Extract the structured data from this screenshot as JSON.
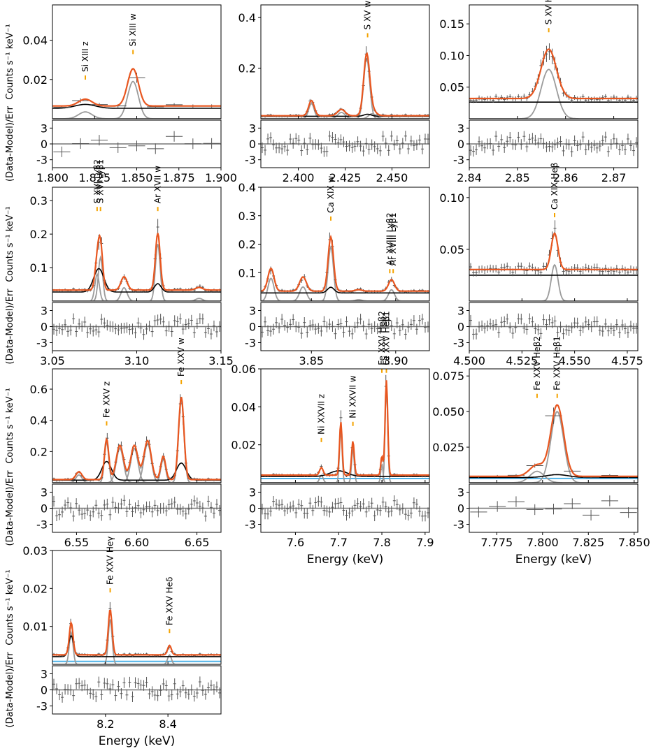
{
  "figure": {
    "ylabel_top": "Counts s⁻¹ keV⁻¹",
    "ylabel_bottom": "(Data-Model)/Err",
    "xlabel": "Energy (keV)"
  },
  "colors": {
    "model": "#e8561f",
    "data": "#555555",
    "background": "#000000",
    "line_component": "#9b9b9b",
    "nxb": "#4fb3e8",
    "line_marker": "#f4a300",
    "zero_line": "#777777"
  },
  "chart_data": [
    {
      "id": "p1",
      "type": "line",
      "xlim": [
        1.8,
        1.9
      ],
      "ylim": [
        0,
        0.058
      ],
      "xticks": [
        "1.800",
        "1.825",
        "1.850",
        "1.875",
        "1.900"
      ],
      "yticks": [
        "0.02",
        "0.04"
      ],
      "line_markers": [
        {
          "label": "Si XIII z",
          "x": 1.8195,
          "y": 0.021
        },
        {
          "label": "Si XIII w",
          "x": 1.8478,
          "y": 0.034
        }
      ],
      "lines": [
        {
          "label": "Si XIII z",
          "x": 1.8195,
          "y": 0.021
        },
        {
          "label": "Si XIII w",
          "x": 1.8478,
          "y": 0.034
        }
      ]
    },
    {
      "id": "p2",
      "type": "line",
      "xlim": [
        2.38,
        2.47
      ],
      "ylim": [
        0,
        0.45
      ],
      "xticks": [
        "2.400",
        "2.425",
        "2.450"
      ],
      "yticks": [
        "0.2",
        "0.4"
      ],
      "lines": [
        {
          "label": "S XV w",
          "x": 2.437,
          "y": 0.33
        }
      ]
    },
    {
      "id": "p3",
      "type": "line",
      "xlim": [
        2.84,
        2.875
      ],
      "ylim": [
        0,
        0.18
      ],
      "xticks": [
        "2.84",
        "2.85",
        "2.86",
        "2.87"
      ],
      "yticks": [
        "0.05",
        "0.10",
        "0.15"
      ],
      "lines": [
        {
          "label": "S XV Heβ",
          "x": 2.8565,
          "y": 0.14
        }
      ]
    },
    {
      "id": "p4",
      "type": "line",
      "xlim": [
        3.05,
        3.15
      ],
      "ylim": [
        0,
        0.34
      ],
      "xticks": [
        "3.05",
        "3.10",
        "3.15"
      ],
      "yticks": [
        "0.1",
        "0.2",
        "0.3"
      ],
      "lines": [
        {
          "label": "S XVI Lyβ2",
          "x": 3.0765,
          "y": 0.275
        },
        {
          "label": "S XVI Lyβ1",
          "x": 3.0785,
          "y": 0.275
        },
        {
          "label": "Ar XVII w",
          "x": 3.1125,
          "y": 0.275
        }
      ]
    },
    {
      "id": "p5",
      "type": "line",
      "xlim": [
        3.82,
        3.92
      ],
      "ylim": [
        0,
        0.4
      ],
      "xticks": [
        "3.85",
        "3.90"
      ],
      "yticks": [
        "0.1",
        "0.2",
        "0.3",
        "0.4"
      ],
      "lines": [
        {
          "label": "Ca XIX w",
          "x": 3.8615,
          "y": 0.29
        },
        {
          "label": "Ar XVIII Lyβ2",
          "x": 3.8965,
          "y": 0.105
        },
        {
          "label": "Ar XVIII Lyβ1",
          "x": 3.8985,
          "y": 0.105
        }
      ]
    },
    {
      "id": "p6",
      "type": "line",
      "xlim": [
        4.5,
        4.58
      ],
      "ylim": [
        0,
        0.11
      ],
      "xticks": [
        "4.500",
        "4.525",
        "4.550",
        "4.575"
      ],
      "yticks": [
        "0.05",
        "0.10"
      ],
      "lines": [
        {
          "label": "Ca XIX Heβ",
          "x": 4.5405,
          "y": 0.083
        }
      ]
    },
    {
      "id": "p7",
      "type": "line",
      "xlim": [
        6.53,
        6.67
      ],
      "ylim": [
        0,
        0.73
      ],
      "xticks": [
        "6.55",
        "6.60",
        "6.65"
      ],
      "yticks": [
        "0.2",
        "0.4",
        "0.6"
      ],
      "lines": [
        {
          "label": "Fe XXV z",
          "x": 6.575,
          "y": 0.38
        },
        {
          "label": "Fe XXV w",
          "x": 6.637,
          "y": 0.645
        }
      ]
    },
    {
      "id": "p8",
      "type": "line",
      "xlim": [
        7.52,
        7.91
      ],
      "ylim": [
        0,
        0.06
      ],
      "xticks": [
        "7.6",
        "7.7",
        "7.8",
        "7.9"
      ],
      "yticks": [
        "0.02",
        "0.04",
        "0.06"
      ],
      "lines": [
        {
          "label": "Ni XXVII z",
          "x": 7.66,
          "y": 0.0225
        },
        {
          "label": "Ni XXVII w",
          "x": 7.733,
          "y": 0.031
        },
        {
          "label": "Fe XXV Heβ2",
          "x": 7.8,
          "y": 0.059
        },
        {
          "label": "Fe XXV Heβ1",
          "x": 7.8105,
          "y": 0.059
        }
      ]
    },
    {
      "id": "p9",
      "type": "line",
      "xlim": [
        7.76,
        7.852
      ],
      "ylim": [
        0,
        0.08
      ],
      "xticks": [
        "7.775",
        "7.800",
        "7.825",
        "7.850"
      ],
      "yticks": [
        "0.025",
        "0.050",
        "0.075"
      ],
      "lines": [
        {
          "label": "Fe XXV Heβ2",
          "x": 7.797,
          "y": 0.061
        },
        {
          "label": "Fe XXV Heβ1",
          "x": 7.808,
          "y": 0.061
        }
      ]
    },
    {
      "id": "p10",
      "type": "line",
      "xlim": [
        8.03,
        8.57
      ],
      "ylim": [
        0,
        0.03
      ],
      "xticks": [
        "8.2",
        "8.4"
      ],
      "yticks": [
        "0.01",
        "0.02",
        "0.03"
      ],
      "lines": [
        {
          "label": "Fe XXV Heγ",
          "x": 8.215,
          "y": 0.0195
        },
        {
          "label": "Fe XXV Heδ",
          "x": 8.405,
          "y": 0.0088
        }
      ]
    }
  ],
  "residual_axis": {
    "ylim": [
      -4.5,
      4.5
    ],
    "yticks": [
      "3",
      "0",
      "-3"
    ],
    "ytick_values": [
      3,
      0,
      -3
    ]
  }
}
